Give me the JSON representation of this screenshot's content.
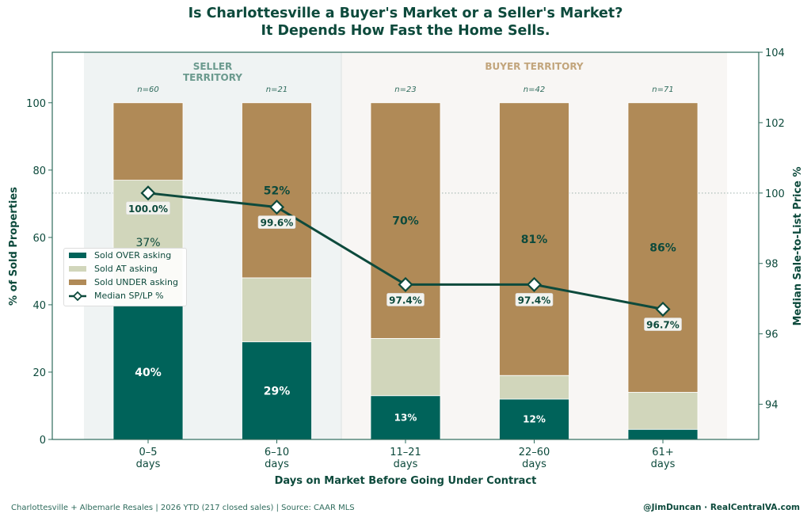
{
  "chart_data": {
    "type": "bar",
    "title": "Is Charlottesville a Buyer's Market or a Seller's Market?",
    "subtitle": "It Depends How Fast the Home Sells.",
    "xlabel": "Days on Market Before Going Under Contract",
    "ylabel": "% of Sold Properties",
    "y2label": "Median Sale-to-List Price %",
    "categories": [
      [
        "0–5",
        "days"
      ],
      [
        "6–10",
        "days"
      ],
      [
        "11–21",
        "days"
      ],
      [
        "22–60",
        "days"
      ],
      [
        "61+",
        "days"
      ]
    ],
    "n_labels": [
      "n=60",
      "n=21",
      "n=23",
      "n=42",
      "n=71"
    ],
    "ylim": [
      0,
      115
    ],
    "yticks": [
      0,
      20,
      40,
      60,
      80,
      100
    ],
    "y2lim": [
      93,
      104
    ],
    "y2ticks": [
      94,
      96,
      98,
      100,
      102,
      104
    ],
    "reference_line_y2": 100,
    "stacked": true,
    "series": [
      {
        "name": "Sold OVER asking",
        "color": "#00635a",
        "values": [
          40,
          29,
          13,
          12,
          3
        ],
        "labels": [
          "40%",
          "29%",
          "13%",
          "12%",
          null
        ]
      },
      {
        "name": "Sold AT asking",
        "color": "#d1d6bb",
        "values": [
          37,
          19,
          17,
          7,
          11
        ],
        "labels": [
          "37%",
          null,
          null,
          null,
          null
        ]
      },
      {
        "name": "Sold UNDER asking",
        "color": "#b08a57",
        "values": [
          23,
          52,
          70,
          81,
          86
        ],
        "labels": [
          null,
          "52%",
          "70%",
          "81%",
          "86%"
        ]
      }
    ],
    "line_series": {
      "name": "Median SP/LP %",
      "axis": "right",
      "color": "#0d4a3c",
      "values": [
        100.0,
        99.6,
        97.4,
        97.4,
        96.7
      ],
      "labels": [
        "100.0%",
        "99.6%",
        "97.4%",
        "97.4%",
        "96.7%"
      ]
    },
    "regions": [
      {
        "label": [
          "SELLER",
          "TERRITORY"
        ],
        "color": "#eff3f3",
        "text_color": "#6b9a8e",
        "from_category": 0,
        "to_category": 1
      },
      {
        "label": [
          "BUYER TERRITORY"
        ],
        "color": "#f8f6f4",
        "text_color": "#c2a57c",
        "from_category": 2,
        "to_category": 4
      }
    ],
    "legend_position": "center-left",
    "grid": false
  },
  "footer": {
    "source": "Charlottesville + Albemarle Resales | 2026 YTD (217 closed sales) | Source: CAAR MLS",
    "credit": "@JimDuncan · RealCentralVA.com"
  }
}
